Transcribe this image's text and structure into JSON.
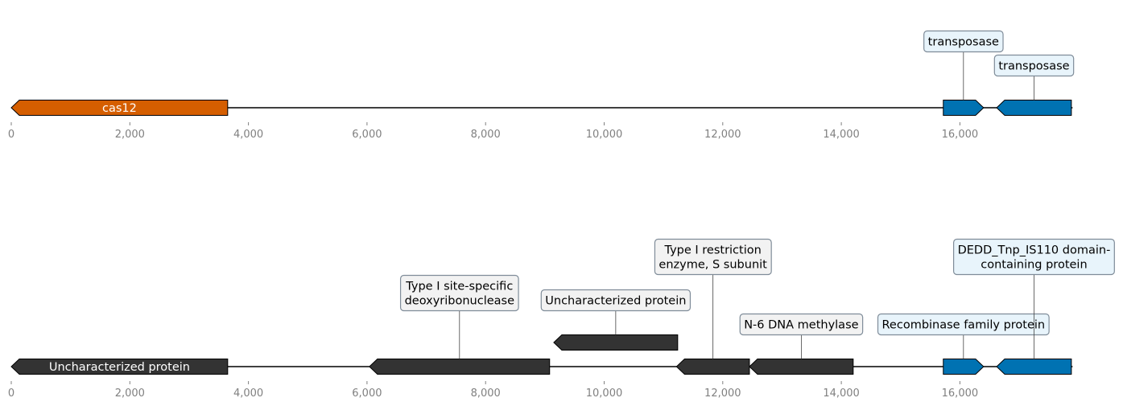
{
  "tracks": [
    {
      "axis": {
        "ticks": [
          0,
          2000,
          4000,
          6000,
          8000,
          10000,
          12000,
          14000,
          16000
        ],
        "tick_labels": [
          "0",
          "2,000",
          "4,000",
          "6,000",
          "8,000",
          "10,000",
          "12,000",
          "14,000",
          "16,000"
        ],
        "max": 17900
      },
      "genes": [
        {
          "start": 0,
          "end": 3650,
          "strand": -1,
          "color": "#d55e00",
          "label": "cas12",
          "label_color": "#ffffff"
        },
        {
          "start": 15720,
          "end": 16400,
          "strand": 1,
          "color": "#0072b2"
        },
        {
          "start": 16620,
          "end": 17880,
          "strand": -1,
          "color": "#0072b2"
        }
      ],
      "callouts": [
        {
          "gene": 1,
          "lines": [
            "transposase"
          ],
          "box_bg": "#e8f4fb",
          "level": 2
        },
        {
          "gene": 2,
          "lines": [
            "transposase"
          ],
          "box_bg": "#e8f4fb",
          "level": 1
        }
      ]
    },
    {
      "axis": {
        "ticks": [
          0,
          2000,
          4000,
          6000,
          8000,
          10000,
          12000,
          14000,
          16000
        ],
        "tick_labels": [
          "0",
          "2,000",
          "4,000",
          "6,000",
          "8,000",
          "10,000",
          "12,000",
          "14,000",
          "16,000"
        ],
        "max": 17900
      },
      "genes": [
        {
          "start": 0,
          "end": 3650,
          "strand": -1,
          "color": "#333333",
          "label": "Uncharacterized protein",
          "label_color": "#ffffff"
        },
        {
          "start": 6040,
          "end": 9080,
          "strand": -1,
          "color": "#333333"
        },
        {
          "start": 9150,
          "end": 11240,
          "strand": -1,
          "color": "#333333",
          "raised": true
        },
        {
          "start": 11220,
          "end": 12450,
          "strand": -1,
          "color": "#333333"
        },
        {
          "start": 12450,
          "end": 14200,
          "strand": -1,
          "color": "#333333"
        },
        {
          "start": 15720,
          "end": 16400,
          "strand": 1,
          "color": "#0072b2"
        },
        {
          "start": 16620,
          "end": 17880,
          "strand": -1,
          "color": "#0072b2"
        }
      ],
      "callouts": [
        {
          "gene": 1,
          "lines": [
            "Type I site-specific",
            "deoxyribonuclease"
          ],
          "box_bg": "#f2f2f2",
          "level": 2
        },
        {
          "gene": 2,
          "lines": [
            "Uncharacterized protein"
          ],
          "box_bg": "#f2f2f2",
          "level": 1
        },
        {
          "gene": 3,
          "lines": [
            "Type I restriction",
            "enzyme, S subunit"
          ],
          "box_bg": "#f2f2f2",
          "level": 3
        },
        {
          "gene": 4,
          "lines": [
            "N-6 DNA methylase"
          ],
          "box_bg": "#f2f2f2",
          "level": 1
        },
        {
          "gene": 5,
          "lines": [
            "Recombinase family protein"
          ],
          "box_bg": "#e8f4fb",
          "level": 1
        },
        {
          "gene": 6,
          "lines": [
            "DEDD_Tnp_IS110 domain-",
            "containing protein"
          ],
          "box_bg": "#e8f4fb",
          "level": 3
        }
      ]
    }
  ]
}
